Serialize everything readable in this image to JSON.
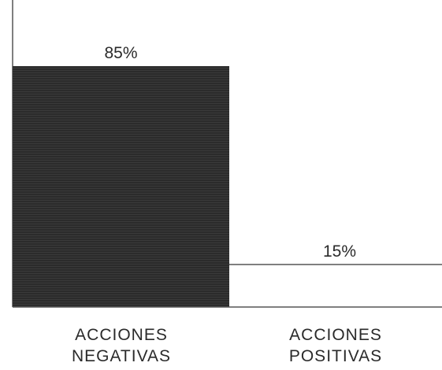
{
  "chart_data": {
    "type": "bar",
    "categories": [
      [
        "ACCIONES",
        "NEGATIVAS"
      ],
      [
        "ACCIONES",
        "POSITIVAS"
      ]
    ],
    "values": [
      85,
      15
    ],
    "data_labels": [
      "85%",
      "15%"
    ],
    "ylim": [
      0,
      100
    ],
    "colors": {
      "bar_negative": "#2b2b2b",
      "bar_positive": "#ffffff",
      "axis": "#555555"
    },
    "grid": false
  }
}
